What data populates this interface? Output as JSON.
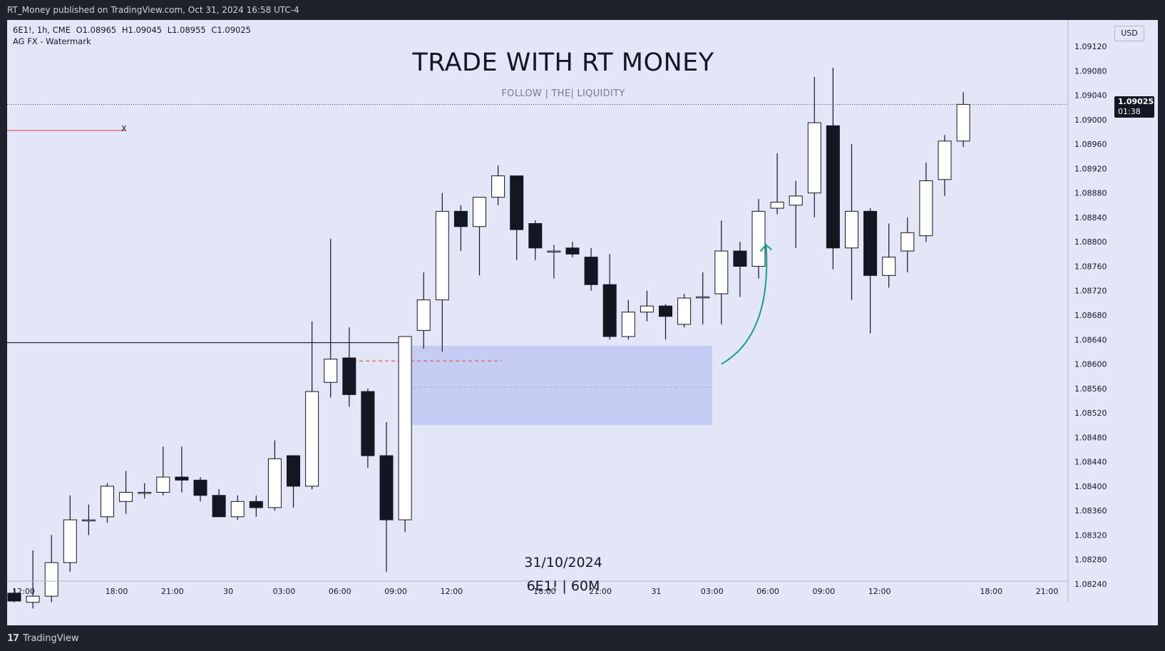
{
  "header": {
    "publisher_line": "RT_Money published on TradingView.com, Oct 31, 2024 16:58 UTC-4"
  },
  "footer": {
    "logo_glyph": "17",
    "brand": "TradingView"
  },
  "legend": {
    "symbol_line": "6E1!, 1h, CME",
    "open": "O1.08965",
    "high": "H1.09045",
    "low": "L1.08955",
    "close": "C1.09025",
    "indicator": "AG FX - Watermark"
  },
  "watermark": {
    "title": "TRADE WITH RT MONEY",
    "subtitle": "FOLLOW   |   THE|   LIQUIDITY",
    "date": "31/10/2024",
    "symbol": "6E1! | 60M"
  },
  "drawing_label": "X",
  "price_scale": {
    "currency": "USD",
    "last_price": "1.09025",
    "countdown": "01:38",
    "ticks": [
      1.0824,
      1.0828,
      1.0832,
      1.0836,
      1.084,
      1.0844,
      1.0848,
      1.0852,
      1.0856,
      1.086,
      1.0864,
      1.0868,
      1.0872,
      1.0876,
      1.088,
      1.0884,
      1.0888,
      1.0892,
      1.0896,
      1.09,
      1.0904,
      1.0908,
      1.0912
    ]
  },
  "colors": {
    "background": "#e3e6f6",
    "frame": "#1e222d",
    "up_body": "#ffffff",
    "down_body": "#131722",
    "wick": "#131722",
    "zone": "#c5cdf4",
    "arrow": "#13a08a",
    "dashed_red": "#e53935",
    "red_line": "#e53935"
  },
  "chart_data": {
    "type": "candlestick",
    "title": "6E1!, 1h, CME",
    "xlabel": "",
    "ylabel": "",
    "ylim": [
      1.0822,
      1.0914
    ],
    "time_labels": [
      {
        "index": 0.5,
        "label": "12:00"
      },
      {
        "index": 5.5,
        "label": "18:00"
      },
      {
        "index": 8.5,
        "label": "21:00"
      },
      {
        "index": 11.5,
        "label": "30"
      },
      {
        "index": 14.5,
        "label": "03:00"
      },
      {
        "index": 17.5,
        "label": "06:00"
      },
      {
        "index": 20.5,
        "label": "09:00"
      },
      {
        "index": 23.5,
        "label": "12:00"
      },
      {
        "index": 28.5,
        "label": "18:00"
      },
      {
        "index": 31.5,
        "label": "21:00"
      },
      {
        "index": 34.5,
        "label": "31"
      },
      {
        "index": 37.5,
        "label": "03:00"
      },
      {
        "index": 40.5,
        "label": "06:00"
      },
      {
        "index": 43.5,
        "label": "09:00"
      },
      {
        "index": 46.5,
        "label": "12:00"
      },
      {
        "index": 52.5,
        "label": "18:00"
      },
      {
        "index": 55.5,
        "label": "21:00"
      }
    ],
    "candles": [
      {
        "o": 1.08225,
        "h": 1.08232,
        "l": 1.0821,
        "c": 1.08212
      },
      {
        "o": 1.0821,
        "h": 1.08295,
        "l": 1.082,
        "c": 1.0822
      },
      {
        "o": 1.0822,
        "h": 1.0832,
        "l": 1.0821,
        "c": 1.08275
      },
      {
        "o": 1.08275,
        "h": 1.08385,
        "l": 1.0826,
        "c": 1.08345
      },
      {
        "o": 1.08345,
        "h": 1.0837,
        "l": 1.0832,
        "c": 1.08345
      },
      {
        "o": 1.0835,
        "h": 1.08405,
        "l": 1.0834,
        "c": 1.084
      },
      {
        "o": 1.08375,
        "h": 1.08425,
        "l": 1.08355,
        "c": 1.0839
      },
      {
        "o": 1.0839,
        "h": 1.08405,
        "l": 1.0838,
        "c": 1.0839
      },
      {
        "o": 1.0839,
        "h": 1.08465,
        "l": 1.08385,
        "c": 1.08415
      },
      {
        "o": 1.08415,
        "h": 1.08465,
        "l": 1.0839,
        "c": 1.0841
      },
      {
        "o": 1.0841,
        "h": 1.08415,
        "l": 1.08375,
        "c": 1.08385
      },
      {
        "o": 1.08385,
        "h": 1.08395,
        "l": 1.0835,
        "c": 1.0835
      },
      {
        "o": 1.0835,
        "h": 1.08385,
        "l": 1.08345,
        "c": 1.08375
      },
      {
        "o": 1.08375,
        "h": 1.08385,
        "l": 1.0835,
        "c": 1.08365
      },
      {
        "o": 1.08365,
        "h": 1.08475,
        "l": 1.0836,
        "c": 1.08445
      },
      {
        "o": 1.0845,
        "h": 1.0845,
        "l": 1.08365,
        "c": 1.084
      },
      {
        "o": 1.084,
        "h": 1.0867,
        "l": 1.08395,
        "c": 1.08555
      },
      {
        "o": 1.0857,
        "h": 1.08805,
        "l": 1.08545,
        "c": 1.08608
      },
      {
        "o": 1.0861,
        "h": 1.0866,
        "l": 1.0853,
        "c": 1.0855
      },
      {
        "o": 1.08555,
        "h": 1.0856,
        "l": 1.0843,
        "c": 1.0845
      },
      {
        "o": 1.0845,
        "h": 1.08505,
        "l": 1.0826,
        "c": 1.08345
      },
      {
        "o": 1.08345,
        "h": 1.08645,
        "l": 1.08325,
        "c": 1.08645
      },
      {
        "o": 1.08655,
        "h": 1.0875,
        "l": 1.08625,
        "c": 1.08705
      },
      {
        "o": 1.08705,
        "h": 1.0888,
        "l": 1.0862,
        "c": 1.0885
      },
      {
        "o": 1.0885,
        "h": 1.0886,
        "l": 1.08785,
        "c": 1.08825
      },
      {
        "o": 1.08825,
        "h": 1.0887,
        "l": 1.08745,
        "c": 1.08873
      },
      {
        "o": 1.08873,
        "h": 1.08925,
        "l": 1.0886,
        "c": 1.08908
      },
      {
        "o": 1.08908,
        "h": 1.08908,
        "l": 1.0877,
        "c": 1.0882
      },
      {
        "o": 1.0883,
        "h": 1.08835,
        "l": 1.0877,
        "c": 1.0879
      },
      {
        "o": 1.08785,
        "h": 1.08795,
        "l": 1.0874,
        "c": 1.08785
      },
      {
        "o": 1.0879,
        "h": 1.088,
        "l": 1.08775,
        "c": 1.0878
      },
      {
        "o": 1.08775,
        "h": 1.0879,
        "l": 1.0872,
        "c": 1.0873
      },
      {
        "o": 1.0873,
        "h": 1.0878,
        "l": 1.0864,
        "c": 1.08645
      },
      {
        "o": 1.08645,
        "h": 1.08705,
        "l": 1.0864,
        "c": 1.08685
      },
      {
        "o": 1.08685,
        "h": 1.0872,
        "l": 1.0867,
        "c": 1.08695
      },
      {
        "o": 1.08695,
        "h": 1.08698,
        "l": 1.0864,
        "c": 1.08678
      },
      {
        "o": 1.08665,
        "h": 1.08715,
        "l": 1.0866,
        "c": 1.08708
      },
      {
        "o": 1.0871,
        "h": 1.0875,
        "l": 1.08665,
        "c": 1.0871
      },
      {
        "o": 1.08715,
        "h": 1.08835,
        "l": 1.08665,
        "c": 1.08785
      },
      {
        "o": 1.08785,
        "h": 1.088,
        "l": 1.0871,
        "c": 1.0876
      },
      {
        "o": 1.0876,
        "h": 1.0887,
        "l": 1.0874,
        "c": 1.0885
      },
      {
        "o": 1.08855,
        "h": 1.08945,
        "l": 1.08845,
        "c": 1.08865
      },
      {
        "o": 1.0886,
        "h": 1.089,
        "l": 1.0879,
        "c": 1.08875
      },
      {
        "o": 1.0888,
        "h": 1.0907,
        "l": 1.0884,
        "c": 1.08995
      },
      {
        "o": 1.0899,
        "h": 1.09085,
        "l": 1.08755,
        "c": 1.0879
      },
      {
        "o": 1.0879,
        "h": 1.0896,
        "l": 1.08705,
        "c": 1.0885
      },
      {
        "o": 1.0885,
        "h": 1.08855,
        "l": 1.0865,
        "c": 1.08745
      },
      {
        "o": 1.08745,
        "h": 1.0883,
        "l": 1.08725,
        "c": 1.08775
      },
      {
        "o": 1.08785,
        "h": 1.0884,
        "l": 1.0875,
        "c": 1.08815
      },
      {
        "o": 1.0881,
        "h": 1.0893,
        "l": 1.088,
        "c": 1.089
      },
      {
        "o": 1.08902,
        "h": 1.08975,
        "l": 1.08875,
        "c": 1.08965
      },
      {
        "o": 1.08965,
        "h": 1.09045,
        "l": 1.08955,
        "c": 1.09025
      }
    ],
    "annotations": {
      "horizontal_line": 1.08635,
      "red_dashed_level": 1.08605,
      "red_ray_level": 1.08985,
      "demand_zone": {
        "from_index": 21,
        "to_index": 37.5,
        "top": 1.0863,
        "bottom": 1.085,
        "mid": 1.08562
      },
      "arrow": {
        "from": {
          "index": 38,
          "price": 1.086
        },
        "to": {
          "index": 40.4,
          "price": 1.08795
        }
      }
    }
  }
}
